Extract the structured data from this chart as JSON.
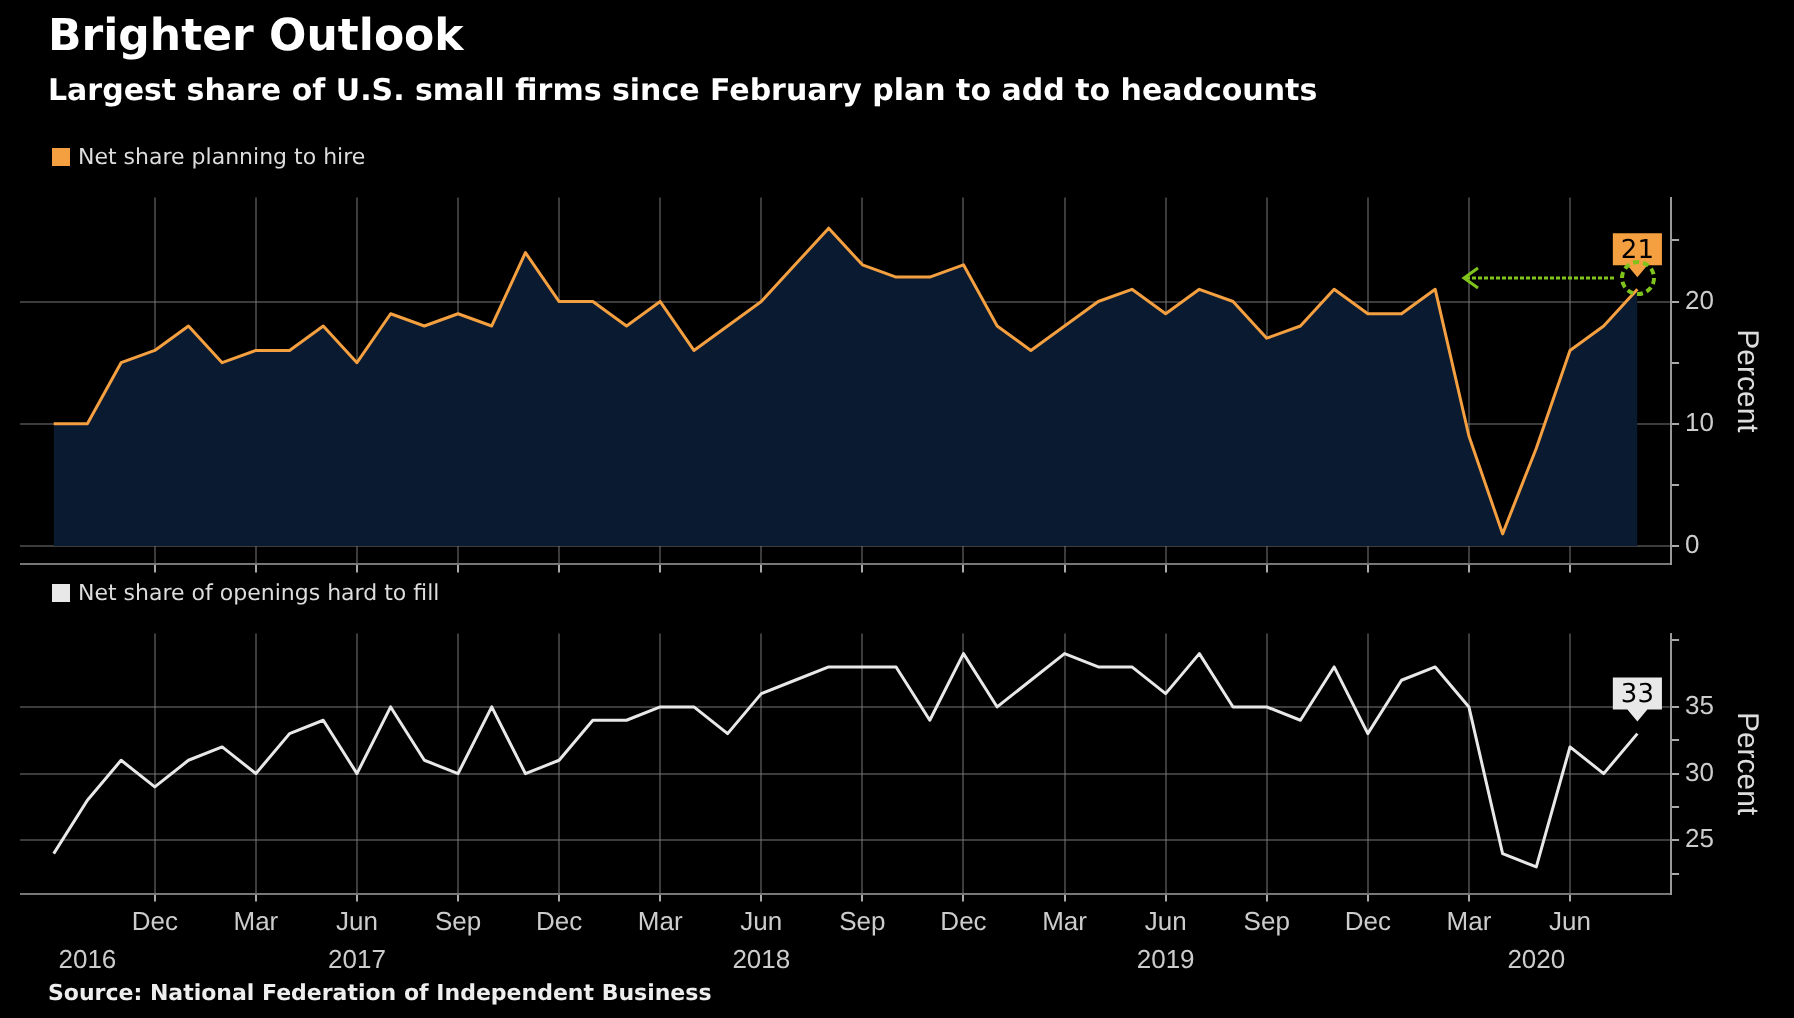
{
  "chart_data": [
    {
      "type": "area",
      "title": "Brighter Outlook",
      "subtitle": "Largest share of U.S. small firms since February plan to add to headcounts",
      "ylabel": "Percent",
      "x": [
        "2016-09",
        "2016-10",
        "2016-11",
        "2016-12",
        "2017-01",
        "2017-02",
        "2017-03",
        "2017-04",
        "2017-05",
        "2017-06",
        "2017-07",
        "2017-08",
        "2017-09",
        "2017-10",
        "2017-11",
        "2017-12",
        "2018-01",
        "2018-02",
        "2018-03",
        "2018-04",
        "2018-05",
        "2018-06",
        "2018-07",
        "2018-08",
        "2018-09",
        "2018-10",
        "2018-11",
        "2018-12",
        "2019-01",
        "2019-02",
        "2019-03",
        "2019-04",
        "2019-05",
        "2019-06",
        "2019-07",
        "2019-08",
        "2019-09",
        "2019-10",
        "2019-11",
        "2019-12",
        "2020-01",
        "2020-02",
        "2020-03",
        "2020-04",
        "2020-05",
        "2020-06",
        "2020-07",
        "2020-08"
      ],
      "series": [
        {
          "name": "Net share planning to hire",
          "color": "#f5a040",
          "values": [
            10,
            10,
            15,
            16,
            18,
            15,
            16,
            16,
            18,
            15,
            19,
            18,
            19,
            18,
            24,
            20,
            20,
            18,
            20,
            16,
            18,
            20,
            23,
            26,
            23,
            22,
            22,
            23,
            18,
            16,
            18,
            20,
            21,
            19,
            21,
            20,
            17,
            18,
            21,
            19,
            19,
            21,
            9,
            1,
            8,
            16,
            18,
            21
          ],
          "value_labels": [
            null,
            null,
            null,
            null,
            null,
            null,
            null,
            null,
            null,
            null,
            null,
            null,
            null,
            null,
            null,
            null,
            null,
            null,
            null,
            null,
            null,
            null,
            null,
            null,
            null,
            null,
            null,
            null,
            null,
            null,
            null,
            null,
            null,
            null,
            null,
            null,
            null,
            null,
            null,
            null,
            null,
            null,
            null,
            null,
            null,
            null,
            null,
            "21"
          ]
        }
      ],
      "xlim": [
        "2016-08",
        "2020-09"
      ],
      "xticks": [
        {
          "value": "2016-12",
          "label": null
        },
        {
          "value": "2017-03",
          "label": null
        },
        {
          "value": "2017-06",
          "label": null
        },
        {
          "value": "2017-09",
          "label": null
        },
        {
          "value": "2017-12",
          "label": null
        },
        {
          "value": "2018-03",
          "label": null
        },
        {
          "value": "2018-06",
          "label": null
        },
        {
          "value": "2018-09",
          "label": null
        },
        {
          "value": "2018-12",
          "label": null
        },
        {
          "value": "2019-03",
          "label": null
        },
        {
          "value": "2019-06",
          "label": null
        },
        {
          "value": "2019-09",
          "label": null
        },
        {
          "value": "2019-12",
          "label": null
        },
        {
          "value": "2020-03",
          "label": null
        },
        {
          "value": "2020-06",
          "label": null
        }
      ],
      "ylim": [
        -1.5,
        28.5
      ],
      "yticks": [
        0,
        {
          "value": 5,
          "label": null
        },
        10,
        {
          "value": 15,
          "label": null
        },
        20,
        {
          "value": 25,
          "label": null
        }
      ],
      "grid": true,
      "legend": "top left",
      "tick_labels": "y"
    },
    {
      "type": "line",
      "ylabel": "Percent",
      "annotations": [
        "Source: National Federation of Independent Business"
      ],
      "x": [
        "2016-09",
        "2016-10",
        "2016-11",
        "2016-12",
        "2017-01",
        "2017-02",
        "2017-03",
        "2017-04",
        "2017-05",
        "2017-06",
        "2017-07",
        "2017-08",
        "2017-09",
        "2017-10",
        "2017-11",
        "2017-12",
        "2018-01",
        "2018-02",
        "2018-03",
        "2018-04",
        "2018-05",
        "2018-06",
        "2018-07",
        "2018-08",
        "2018-09",
        "2018-10",
        "2018-11",
        "2018-12",
        "2019-01",
        "2019-02",
        "2019-03",
        "2019-04",
        "2019-05",
        "2019-06",
        "2019-07",
        "2019-08",
        "2019-09",
        "2019-10",
        "2019-11",
        "2019-12",
        "2020-01",
        "2020-02",
        "2020-03",
        "2020-04",
        "2020-05",
        "2020-06",
        "2020-07",
        "2020-08"
      ],
      "series": [
        {
          "name": "Net share of openings hard to fill",
          "color": "#e8e8e8",
          "values": [
            24,
            28,
            31,
            29,
            31,
            32,
            30,
            33,
            34,
            30,
            35,
            31,
            30,
            35,
            30,
            31,
            34,
            34,
            35,
            35,
            33,
            36,
            37,
            38,
            38,
            38,
            34,
            39,
            35,
            37,
            39,
            38,
            38,
            36,
            39,
            35,
            35,
            34,
            38,
            33,
            37,
            38,
            35,
            24,
            23,
            32,
            30,
            33
          ],
          "value_labels": [
            null,
            null,
            null,
            null,
            null,
            null,
            null,
            null,
            null,
            null,
            null,
            null,
            null,
            null,
            null,
            null,
            null,
            null,
            null,
            null,
            null,
            null,
            null,
            null,
            null,
            null,
            null,
            null,
            null,
            null,
            null,
            null,
            null,
            null,
            null,
            null,
            null,
            null,
            null,
            null,
            null,
            null,
            null,
            null,
            null,
            null,
            null,
            "33"
          ]
        }
      ],
      "xlim": [
        "2016-08",
        "2020-09"
      ],
      "xticks": [
        {
          "value": "2016-12",
          "label": "Dec"
        },
        {
          "value": "2017-03",
          "label": "Mar"
        },
        {
          "value": "2017-06",
          "label": "Jun"
        },
        {
          "value": "2017-09",
          "label": "Sep"
        },
        {
          "value": "2017-12",
          "label": "Dec"
        },
        {
          "value": "2018-03",
          "label": "Mar"
        },
        {
          "value": "2018-06",
          "label": "Jun"
        },
        {
          "value": "2018-09",
          "label": "Sep"
        },
        {
          "value": "2018-12",
          "label": "Dec"
        },
        {
          "value": "2019-03",
          "label": "Mar"
        },
        {
          "value": "2019-06",
          "label": "Jun"
        },
        {
          "value": "2019-09",
          "label": "Sep"
        },
        {
          "value": "2019-12",
          "label": "Dec"
        },
        {
          "value": "2020-03",
          "label": "Mar"
        },
        {
          "value": "2020-06",
          "label": "Jun"
        }
      ],
      "x2lim": [
        "2016-08",
        "2020-09"
      ],
      "x2ticks": [
        {
          "value": "2016-10",
          "label": "2016"
        },
        {
          "value": "2017-06",
          "label": "2017"
        },
        {
          "value": "2018-06",
          "label": "2018"
        },
        {
          "value": "2019-06",
          "label": "2019"
        },
        {
          "value": "2020-05",
          "label": "2020"
        }
      ],
      "ylim": [
        21,
        40.5
      ],
      "yticks": [
        {
          "value": 22.5,
          "label": null
        },
        25,
        {
          "value": 27.5,
          "label": null
        },
        30,
        {
          "value": 32.5,
          "label": null
        },
        35,
        {
          "value": 40,
          "label": null
        }
      ],
      "grid": true,
      "legend": "top left"
    }
  ]
}
